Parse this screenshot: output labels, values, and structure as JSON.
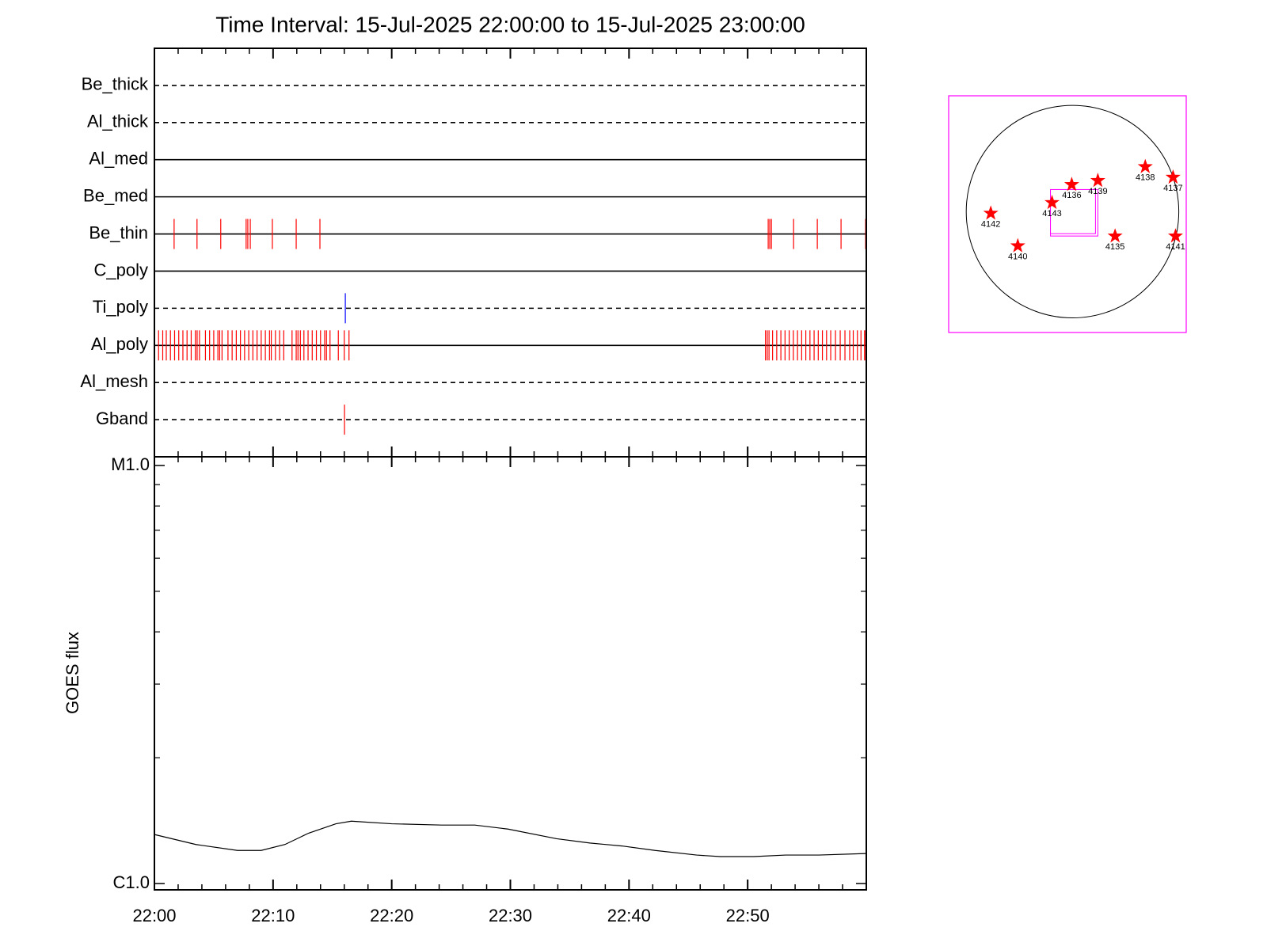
{
  "chart_data": [
    {
      "type": "timeline",
      "title": "Time Interval: 15-Jul-2025 22:00:00 to 15-Jul-2025 23:00:00",
      "xlim": [
        0,
        60
      ],
      "xticks": [
        0,
        10,
        20,
        30,
        40,
        50,
        60
      ],
      "xminorticks": [
        2,
        4,
        6,
        8,
        12,
        14,
        16,
        18,
        22,
        24,
        26,
        28,
        32,
        34,
        36,
        38,
        42,
        44,
        46,
        48,
        52,
        54,
        56,
        58
      ],
      "event_color": "#ff0000",
      "rows": [
        {
          "name": "Be_thick",
          "style": "dashed",
          "events": []
        },
        {
          "name": "Al_thick",
          "style": "dashed",
          "events": []
        },
        {
          "name": "Al_med",
          "style": "solid",
          "events": []
        },
        {
          "name": "Be_med",
          "style": "solid",
          "events": []
        },
        {
          "name": "Be_thin",
          "style": "solid",
          "events": [
            1.66,
            3.59,
            5.59,
            7.73,
            7.87,
            8.08,
            9.94,
            11.95,
            13.95,
            51.73,
            51.86,
            52.0,
            53.87,
            55.87,
            57.87,
            59.94
          ]
        },
        {
          "name": "C_poly",
          "style": "solid",
          "events": []
        },
        {
          "name": "Ti_poly",
          "style": "dashed",
          "color": "#0000ff",
          "events": [
            16.09
          ]
        },
        {
          "name": "Al_poly",
          "style": "solid",
          "events": [
            0.35,
            0.7,
            1.0,
            1.35,
            1.7,
            2.05,
            2.4,
            2.75,
            3.1,
            3.45,
            3.6,
            3.8,
            4.3,
            4.65,
            5.0,
            5.35,
            5.5,
            5.7,
            6.2,
            6.55,
            6.9,
            7.25,
            7.6,
            7.95,
            8.3,
            8.65,
            9.0,
            9.35,
            9.7,
            9.85,
            10.2,
            10.55,
            10.9,
            11.6,
            11.95,
            12.1,
            12.3,
            12.6,
            12.95,
            13.3,
            13.65,
            14.0,
            14.35,
            14.5,
            14.8,
            15.5,
            16.0,
            16.4,
            51.5,
            51.65,
            51.8,
            52.1,
            52.45,
            52.8,
            53.15,
            53.5,
            53.85,
            54.2,
            54.55,
            54.9,
            55.25,
            55.6,
            55.95,
            56.3,
            56.65,
            57.0,
            57.4,
            57.8,
            58.2,
            58.6,
            58.9,
            59.25,
            59.55,
            59.85,
            59.95
          ]
        },
        {
          "name": "Al_mesh",
          "style": "dashed",
          "events": []
        },
        {
          "name": "Gband",
          "style": "dashed",
          "events": [
            16.02
          ]
        }
      ]
    },
    {
      "type": "line",
      "ylabel": "GOES flux",
      "ylog": true,
      "color": "#000000",
      "x": [
        0,
        3.5,
        7,
        9,
        11,
        13,
        15.3,
        16.6,
        20,
        24.2,
        27,
        29.8,
        33.9,
        36.7,
        39.4,
        42.2,
        45.7,
        47.7,
        50.5,
        53.2,
        56,
        60
      ],
      "values": [
        1.31e-06,
        1.24e-06,
        1.2e-06,
        1.2e-06,
        1.24e-06,
        1.32e-06,
        1.39e-06,
        1.41e-06,
        1.39e-06,
        1.38e-06,
        1.38e-06,
        1.35e-06,
        1.28e-06,
        1.25e-06,
        1.23e-06,
        1.2e-06,
        1.17e-06,
        1.16e-06,
        1.16e-06,
        1.17e-06,
        1.17e-06,
        1.18e-06
      ],
      "xlim": [
        0,
        60
      ],
      "xticks": [
        {
          "value": 0,
          "label": "22:00"
        },
        {
          "value": 10,
          "label": "22:10"
        },
        {
          "value": 20,
          "label": "22:20"
        },
        {
          "value": 30,
          "label": "22:30"
        },
        {
          "value": 40,
          "label": "22:40"
        },
        {
          "value": 50,
          "label": "22:50"
        }
      ],
      "xminorticks": [
        2,
        4,
        6,
        8,
        12,
        14,
        16,
        18,
        22,
        24,
        26,
        28,
        32,
        34,
        36,
        38,
        42,
        44,
        46,
        48,
        52,
        54,
        56,
        58
      ],
      "ylim": [
        9.66e-07,
        1.049e-05
      ],
      "yticks": [
        {
          "value": 1e-06,
          "label": "C1.0"
        },
        {
          "value": 1e-05,
          "label": "M1.0"
        }
      ],
      "yminorticks": [
        2e-06,
        3e-06,
        4e-06,
        5e-06,
        6e-06,
        7e-06,
        8e-06,
        9e-06
      ]
    },
    {
      "type": "map",
      "xlim": [
        -1100,
        1010
      ],
      "ylim": [
        -1075,
        1030
      ],
      "box_color": "#ff00ff",
      "disk_radius": 944,
      "disk_color": "#000000",
      "color": "#ff0000",
      "fov": {
        "xlim": [
          -196,
          204
        ],
        "ylim": [
          -196,
          196
        ]
      },
      "labels": [
        "4136",
        "4139",
        "4138",
        "4137",
        "4142",
        "4143",
        "4135",
        "4140",
        "4141"
      ],
      "x": [
        -7,
        225,
        646,
        893,
        -726,
        -182,
        378,
        -486,
        915
      ],
      "y": [
        240,
        276,
        399,
        305,
        -15,
        80,
        -218,
        -305,
        -218
      ]
    }
  ]
}
